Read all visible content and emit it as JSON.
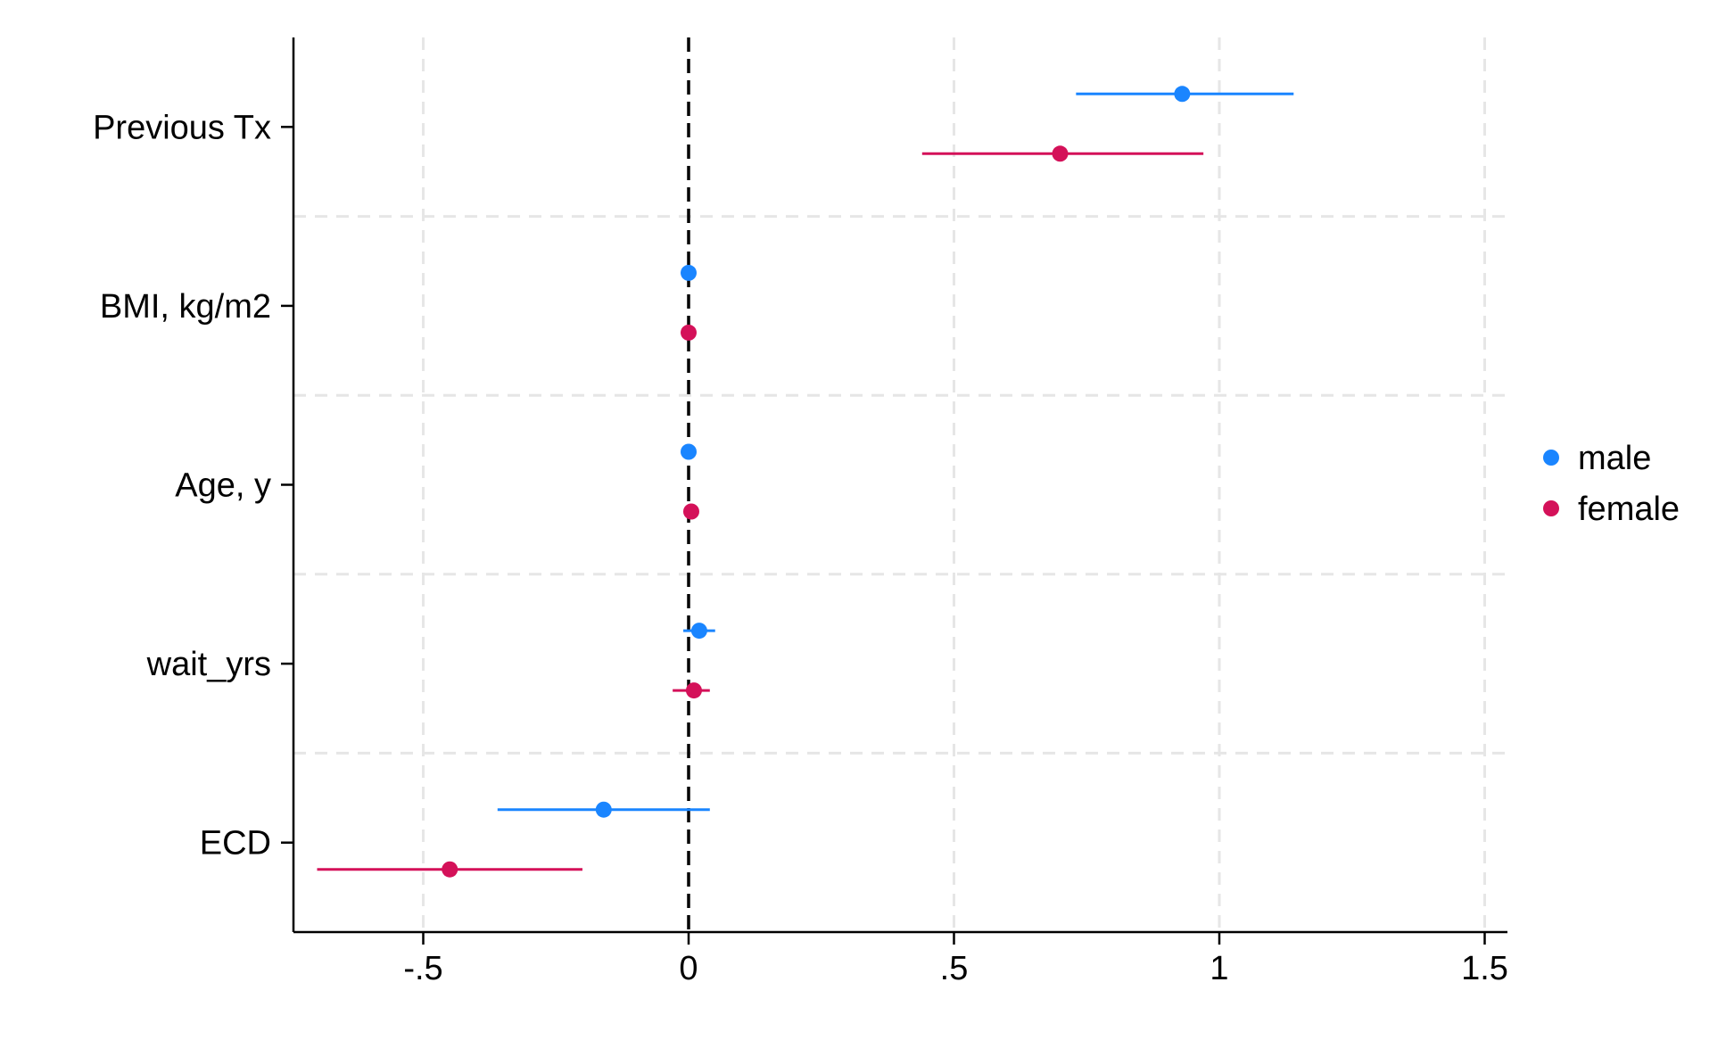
{
  "chart_data": {
    "type": "scatter",
    "subtype": "coefficient-plot",
    "title": "",
    "xlabel": "",
    "ylabel": "",
    "xlim": [
      -0.75,
      1.55
    ],
    "x_ticks": [
      {
        "value": -0.5,
        "label": "-.5"
      },
      {
        "value": 0,
        "label": "0"
      },
      {
        "value": 0.5,
        "label": ".5"
      },
      {
        "value": 1,
        "label": "1"
      },
      {
        "value": 1.5,
        "label": "1.5"
      }
    ],
    "categories": [
      "Previous Tx",
      "BMI, kg/m2",
      "Age, y",
      "wait_yrs",
      "ECD"
    ],
    "reference_line": {
      "x": 0,
      "style": "dashed",
      "color": "#000000"
    },
    "grid": true,
    "legend_position": "right",
    "series": [
      {
        "name": "male",
        "color": "#1a85ff",
        "points": [
          {
            "category": "Previous Tx",
            "estimate": 0.93,
            "ci_low": 0.73,
            "ci_high": 1.14
          },
          {
            "category": "BMI, kg/m2",
            "estimate": 0.0,
            "ci_low": 0.0,
            "ci_high": 0.0
          },
          {
            "category": "Age, y",
            "estimate": 0.0,
            "ci_low": 0.0,
            "ci_high": 0.0
          },
          {
            "category": "wait_yrs",
            "estimate": 0.02,
            "ci_low": -0.01,
            "ci_high": 0.05
          },
          {
            "category": "ECD",
            "estimate": -0.16,
            "ci_low": -0.36,
            "ci_high": 0.04
          }
        ]
      },
      {
        "name": "female",
        "color": "#d41159",
        "points": [
          {
            "category": "Previous Tx",
            "estimate": 0.7,
            "ci_low": 0.44,
            "ci_high": 0.97
          },
          {
            "category": "BMI, kg/m2",
            "estimate": 0.0,
            "ci_low": 0.0,
            "ci_high": 0.0
          },
          {
            "category": "Age, y",
            "estimate": 0.005,
            "ci_low": 0.005,
            "ci_high": 0.005
          },
          {
            "category": "wait_yrs",
            "estimate": 0.01,
            "ci_low": -0.03,
            "ci_high": 0.04
          },
          {
            "category": "ECD",
            "estimate": -0.45,
            "ci_low": -0.7,
            "ci_high": -0.2
          }
        ]
      }
    ]
  }
}
